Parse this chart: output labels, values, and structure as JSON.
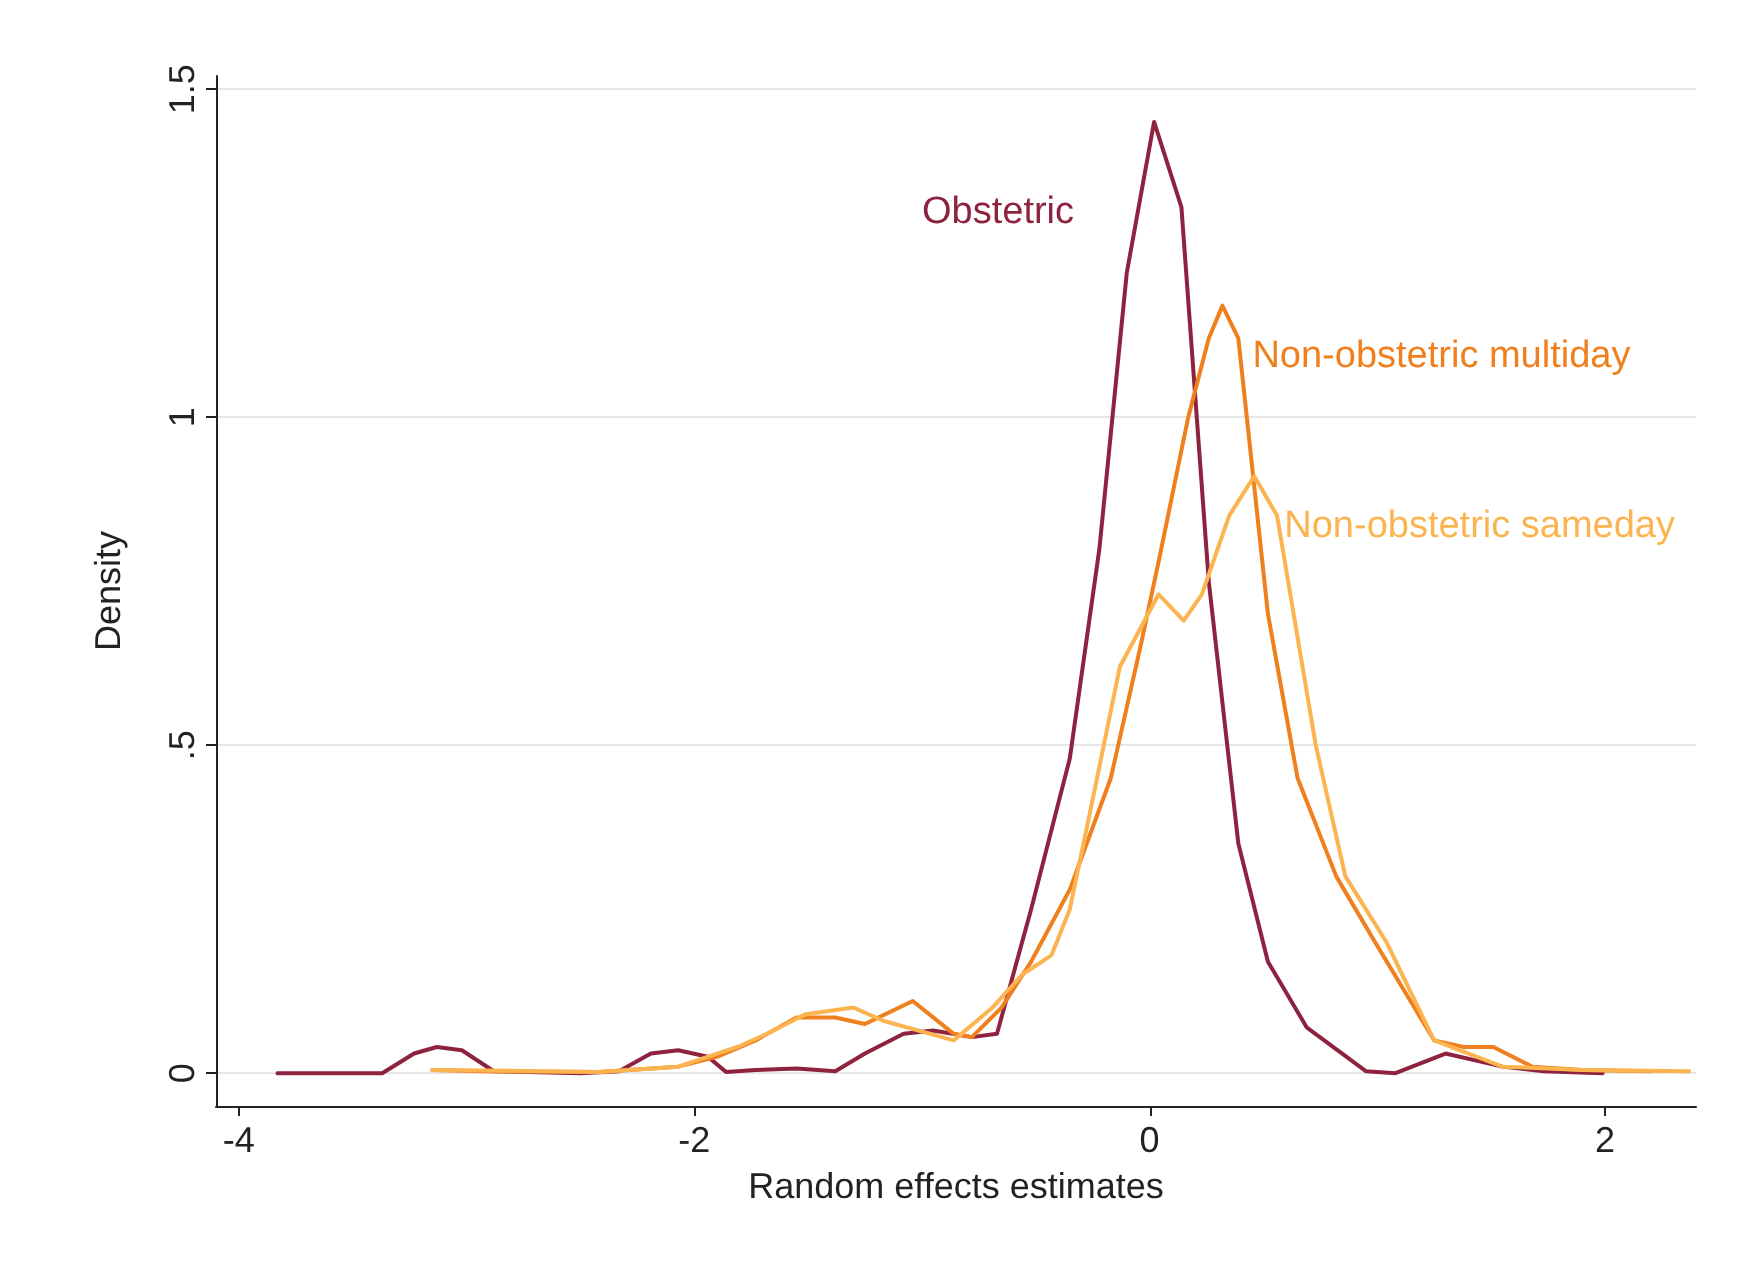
{
  "chart_data": {
    "type": "line",
    "xlabel": "Random effects estimates",
    "ylabel": "Density",
    "xlim": [
      -4.1,
      2.4
    ],
    "ylim": [
      -0.05,
      1.52
    ],
    "xticks": [
      -4,
      -2,
      0,
      2
    ],
    "yticks": [
      0,
      {
        "value": 0.5,
        "label": ".5"
      },
      1,
      1.5
    ],
    "grid": "y",
    "legend": false,
    "marker": "none",
    "line_style": "solid",
    "series": [
      {
        "name": "Obstetric",
        "color": "#8e2340",
        "x": [
          -3.83,
          -3.37,
          -3.23,
          -3.13,
          -3.02,
          -2.88,
          -2.5,
          -2.33,
          -2.19,
          -2.07,
          -1.94,
          -1.86,
          -1.73,
          -1.55,
          -1.38,
          -1.25,
          -1.08,
          -0.95,
          -0.78,
          -0.67,
          -0.52,
          -0.35,
          -0.22,
          -0.1,
          0.02,
          0.14,
          0.26,
          0.39,
          0.52,
          0.69,
          0.95,
          1.08,
          1.3,
          1.55,
          1.73,
          1.99
        ],
        "values": [
          0,
          0,
          0.03,
          0.04,
          0.035,
          0.003,
          0,
          0.003,
          0.03,
          0.035,
          0.025,
          0.002,
          0.005,
          0.007,
          0.003,
          0.03,
          0.06,
          0.065,
          0.055,
          0.06,
          0.25,
          0.48,
          0.8,
          1.22,
          1.45,
          1.32,
          0.75,
          0.35,
          0.17,
          0.07,
          0.003,
          0,
          0.03,
          0.01,
          0.003,
          0
        ]
      },
      {
        "name": "Non-obstetric multiday",
        "color": "#f07f1e",
        "x": [
          -3.15,
          -2.94,
          -2.42,
          -2.07,
          -1.9,
          -1.73,
          -1.55,
          -1.38,
          -1.25,
          -1.04,
          -0.86,
          -0.78,
          -0.65,
          -0.52,
          -0.35,
          -0.17,
          -0.04,
          0.04,
          0.17,
          0.26,
          0.32,
          0.39,
          0.52,
          0.65,
          0.82,
          0.99,
          1.25,
          1.38,
          1.51,
          1.68,
          1.9,
          2.2
        ],
        "values": [
          0.005,
          0.003,
          0.002,
          0.01,
          0.025,
          0.05,
          0.085,
          0.085,
          0.075,
          0.11,
          0.06,
          0.055,
          0.1,
          0.17,
          0.28,
          0.45,
          0.65,
          0.78,
          1.0,
          1.12,
          1.17,
          1.12,
          0.7,
          0.45,
          0.3,
          0.2,
          0.05,
          0.04,
          0.04,
          0.01,
          0.005,
          0.003
        ]
      },
      {
        "name": "Non-obstetric sameday",
        "color": "#fbb450",
        "x": [
          -3.15,
          -2.42,
          -2.07,
          -1.81,
          -1.68,
          -1.51,
          -1.3,
          -1.17,
          -0.86,
          -0.69,
          -0.56,
          -0.43,
          -0.35,
          -0.26,
          -0.13,
          0.04,
          0.15,
          0.23,
          0.35,
          0.46,
          0.56,
          0.73,
          0.86,
          1.04,
          1.25,
          1.55,
          1.9,
          2.37
        ],
        "values": [
          0.005,
          0.002,
          0.01,
          0.04,
          0.06,
          0.09,
          0.1,
          0.08,
          0.05,
          0.1,
          0.15,
          0.18,
          0.25,
          0.4,
          0.62,
          0.73,
          0.69,
          0.73,
          0.85,
          0.91,
          0.85,
          0.5,
          0.3,
          0.2,
          0.05,
          0.01,
          0.005,
          0.003
        ]
      }
    ]
  }
}
